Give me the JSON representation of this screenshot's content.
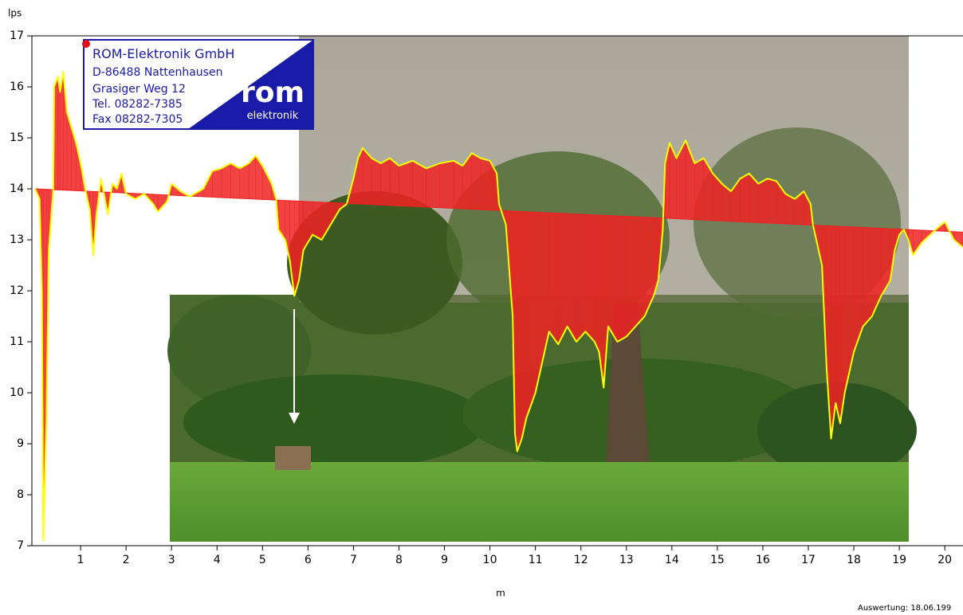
{
  "chart_data": {
    "type": "line",
    "y_label": "lps",
    "x_label": "m",
    "footer": "Auswertung: 18.06.199",
    "logo": {
      "lines": [
        "ROM-Elektronik GmbH",
        "D-86488 Nattenhausen",
        "Grasiger Weg 12",
        "Tel. 08282-7385",
        "Fax 08282-7305"
      ],
      "brand": "rom",
      "brand_sub": "elektronik"
    },
    "xlim": [
      0,
      20.4
    ],
    "xticks": [
      1,
      2,
      3,
      4,
      5,
      6,
      7,
      8,
      9,
      10,
      11,
      12,
      13,
      14,
      15,
      16,
      17,
      18,
      19,
      20
    ],
    "ylim": [
      7,
      17
    ],
    "yticks": [
      7,
      8,
      9,
      10,
      11,
      12,
      13,
      14,
      15,
      16,
      17
    ],
    "trend": {
      "x": [
        0,
        20.4
      ],
      "values": [
        14.0,
        13.15
      ]
    },
    "series": [
      {
        "color": "#ffff00",
        "fill": "#ee2222",
        "x": [
          0,
          0.1,
          0.15,
          0.18,
          0.25,
          0.3,
          0.4,
          0.42,
          0.5,
          0.55,
          0.62,
          0.7,
          0.8,
          0.9,
          1.0,
          1.1,
          1.2,
          1.28,
          1.35,
          1.45,
          1.6,
          1.7,
          1.8,
          1.9,
          2.0,
          2.2,
          2.4,
          2.6,
          2.7,
          2.9,
          3.0,
          3.2,
          3.4,
          3.7,
          3.9,
          4.1,
          4.3,
          4.5,
          4.7,
          4.85,
          5.0,
          5.2,
          5.3,
          5.35,
          5.5,
          5.6,
          5.7,
          5.8,
          5.9,
          6.1,
          6.3,
          6.5,
          6.7,
          6.85,
          7.0,
          7.1,
          7.2,
          7.4,
          7.6,
          7.8,
          8.0,
          8.3,
          8.6,
          8.9,
          9.2,
          9.4,
          9.6,
          9.8,
          10.0,
          10.15,
          10.2,
          10.35,
          10.5,
          10.55,
          10.6,
          10.7,
          10.8,
          11.0,
          11.1,
          11.3,
          11.5,
          11.7,
          11.9,
          12.1,
          12.3,
          12.4,
          12.5,
          12.6,
          12.8,
          13.0,
          13.2,
          13.4,
          13.6,
          13.7,
          13.8,
          13.85,
          13.95,
          14.1,
          14.3,
          14.5,
          14.7,
          14.9,
          15.1,
          15.3,
          15.5,
          15.7,
          15.9,
          16.1,
          16.3,
          16.5,
          16.7,
          16.9,
          17.05,
          17.1,
          17.3,
          17.4,
          17.5,
          17.6,
          17.7,
          17.8,
          18.0,
          18.2,
          18.4,
          18.6,
          18.8,
          18.9,
          19.0,
          19.1,
          19.2,
          19.3,
          19.5,
          19.8,
          20.0,
          20.2,
          20.4
        ],
        "values": [
          14.0,
          13.8,
          12.0,
          7.1,
          9.5,
          12.8,
          14.0,
          16.0,
          16.2,
          15.9,
          16.3,
          15.5,
          15.2,
          14.9,
          14.5,
          14.0,
          13.6,
          12.7,
          13.5,
          14.2,
          13.5,
          14.1,
          14.0,
          14.3,
          13.9,
          13.8,
          13.9,
          13.7,
          13.55,
          13.75,
          14.1,
          13.95,
          13.85,
          14.0,
          14.35,
          14.4,
          14.5,
          14.4,
          14.5,
          14.65,
          14.45,
          14.1,
          13.8,
          13.2,
          13.0,
          12.6,
          11.9,
          12.2,
          12.8,
          13.1,
          13.0,
          13.3,
          13.6,
          13.7,
          14.2,
          14.6,
          14.8,
          14.6,
          14.5,
          14.6,
          14.45,
          14.55,
          14.4,
          14.5,
          14.55,
          14.45,
          14.7,
          14.6,
          14.55,
          14.3,
          13.7,
          13.3,
          11.5,
          9.2,
          8.85,
          9.1,
          9.5,
          10.0,
          10.4,
          11.2,
          10.95,
          11.3,
          11.0,
          11.2,
          11.0,
          10.8,
          10.1,
          11.3,
          11.0,
          11.1,
          11.3,
          11.5,
          11.9,
          12.2,
          13.2,
          14.5,
          14.9,
          14.6,
          14.95,
          14.5,
          14.6,
          14.3,
          14.1,
          13.95,
          14.2,
          14.3,
          14.1,
          14.2,
          14.15,
          13.9,
          13.8,
          13.95,
          13.7,
          13.3,
          12.5,
          10.5,
          9.1,
          9.8,
          9.4,
          10.0,
          10.8,
          11.3,
          11.5,
          11.9,
          12.2,
          12.8,
          13.1,
          13.2,
          13.0,
          12.7,
          12.95,
          13.2,
          13.35,
          13.0,
          12.85
        ]
      }
    ]
  }
}
